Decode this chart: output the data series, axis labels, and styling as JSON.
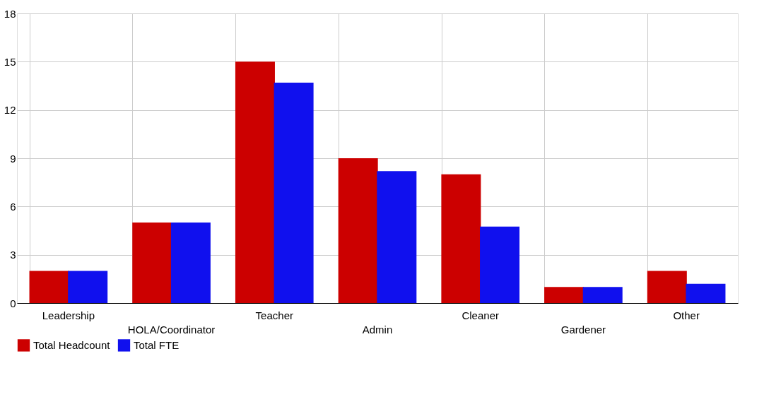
{
  "chart_data": {
    "type": "bar",
    "categories": [
      "Leadership",
      "HOLA/Coordinator",
      "Teacher",
      "Admin",
      "Cleaner",
      "Gardener",
      "Other"
    ],
    "series": [
      {
        "name": "Total Headcount",
        "color": "#cc0000",
        "values": [
          2,
          5,
          15,
          9,
          8,
          1,
          2
        ]
      },
      {
        "name": "Total FTE",
        "color": "#1010ee",
        "values": [
          2,
          5,
          13.7,
          8.2,
          4.75,
          1,
          1.2
        ]
      }
    ],
    "ylim": [
      0,
      18
    ],
    "yticks": [
      0,
      3,
      6,
      9,
      12,
      15,
      18
    ],
    "grid": true,
    "legend": "bottom"
  }
}
